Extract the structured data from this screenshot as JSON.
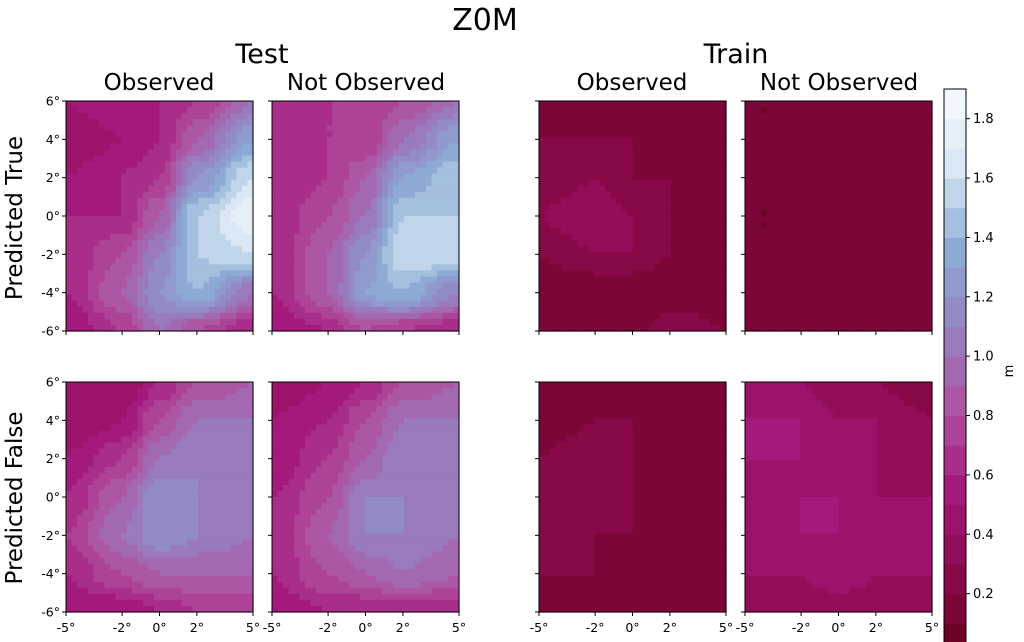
{
  "chart_data": {
    "type": "heatmap",
    "title": "Z0M",
    "group_labels": [
      "Test",
      "Train"
    ],
    "column_labels": [
      "Observed",
      "Not Observed",
      "Observed",
      "Not Observed"
    ],
    "row_labels": [
      "Predicted True",
      "Predicted False"
    ],
    "x_ticks": [
      "-5°",
      "-2°",
      "0°",
      "2°",
      "5°"
    ],
    "x_tick_values": [
      -5,
      -2,
      0,
      2,
      5
    ],
    "xlim": [
      -5,
      5
    ],
    "y_ticks": [
      "6°",
      "4°",
      "2°",
      "0°",
      "-2°",
      "-4°",
      "-6°"
    ],
    "y_tick_values": [
      6,
      4,
      2,
      0,
      -2,
      -4,
      -6
    ],
    "ylim": [
      -6,
      6
    ],
    "colorbar": {
      "label": "m",
      "vmin": 0.0,
      "vmax": 1.9,
      "ticks": [
        "0.0",
        "0.2",
        "0.4",
        "0.6",
        "0.8",
        "1.0",
        "1.2",
        "1.4",
        "1.6",
        "1.8"
      ],
      "tick_values": [
        0,
        0.2,
        0.4,
        0.6,
        0.8,
        1.0,
        1.2,
        1.4,
        1.6,
        1.8
      ],
      "levels": 19,
      "colormap": [
        "#67001f",
        "#8b0a4a",
        "#a3177b",
        "#b0519f",
        "#9581c0",
        "#8cabd5",
        "#d6e6f3",
        "#f7fbff"
      ]
    },
    "panels": [
      {
        "group": "Test",
        "column": "Observed",
        "row": "Predicted True",
        "y": [
          -6,
          -4,
          -2,
          0,
          2,
          4,
          6
        ],
        "x": [
          -5,
          -2,
          0,
          2,
          5
        ],
        "z": [
          [
            0.5,
            0.7,
            1.0,
            0.8,
            0.6
          ],
          [
            0.6,
            0.9,
            1.2,
            1.4,
            1.0
          ],
          [
            0.6,
            0.8,
            1.1,
            1.5,
            1.6
          ],
          [
            0.6,
            0.6,
            0.9,
            1.5,
            1.8
          ],
          [
            0.5,
            0.6,
            0.7,
            1.2,
            1.6
          ],
          [
            0.4,
            0.5,
            0.6,
            0.9,
            1.3
          ],
          [
            0.5,
            0.6,
            0.6,
            0.7,
            1.0
          ]
        ]
      },
      {
        "group": "Test",
        "column": "Not Observed",
        "row": "Predicted True",
        "y": [
          -6,
          -4,
          -2,
          0,
          2,
          4,
          6
        ],
        "x": [
          -5,
          -2,
          0,
          2,
          5
        ],
        "z": [
          [
            0.5,
            0.6,
            0.8,
            0.7,
            0.6
          ],
          [
            0.6,
            0.9,
            1.3,
            1.4,
            1.1
          ],
          [
            0.6,
            0.9,
            1.2,
            1.6,
            1.6
          ],
          [
            0.6,
            0.8,
            1.0,
            1.5,
            1.5
          ],
          [
            0.6,
            0.7,
            0.9,
            1.3,
            1.5
          ],
          [
            0.6,
            0.7,
            0.7,
            1.0,
            1.3
          ],
          [
            0.6,
            0.7,
            0.7,
            0.8,
            1.0
          ]
        ]
      },
      {
        "group": "Train",
        "column": "Observed",
        "row": "Predicted True",
        "y": [
          -6,
          -4,
          -2,
          0,
          2,
          4,
          6
        ],
        "x": [
          -5,
          -2,
          0,
          2,
          5
        ],
        "z": [
          [
            0.1,
            0.1,
            0.1,
            0.3,
            0.2
          ],
          [
            0.1,
            0.1,
            0.1,
            0.1,
            0.1
          ],
          [
            0.2,
            0.3,
            0.3,
            0.2,
            0.1
          ],
          [
            0.3,
            0.4,
            0.3,
            0.2,
            0.1
          ],
          [
            0.2,
            0.3,
            0.2,
            0.2,
            0.1
          ],
          [
            0.2,
            0.2,
            0.2,
            0.1,
            0.2
          ],
          [
            0.1,
            0.2,
            0.1,
            0.1,
            0.1
          ]
        ]
      },
      {
        "group": "Train",
        "column": "Not Observed",
        "row": "Predicted True",
        "y": [
          -6,
          -4,
          -2,
          0,
          2,
          4,
          6
        ],
        "x": [
          -5,
          -2,
          0,
          2,
          5
        ],
        "z": [
          [
            0.1,
            0.1,
            0.1,
            0.1,
            0.1
          ],
          [
            0.1,
            0.1,
            0.1,
            0.1,
            0.1
          ],
          [
            0.1,
            0.1,
            0.1,
            0.1,
            0.1
          ],
          [
            0.1,
            0.1,
            0.1,
            0.1,
            0.1
          ],
          [
            0.1,
            0.1,
            0.1,
            0.1,
            0.1
          ],
          [
            0.1,
            0.1,
            0.1,
            0.1,
            0.1
          ],
          [
            0.1,
            0.1,
            0.1,
            0.1,
            0.1
          ]
        ]
      },
      {
        "group": "Test",
        "column": "Observed",
        "row": "Predicted False",
        "y": [
          -6,
          -4,
          -2,
          0,
          2,
          4,
          6
        ],
        "x": [
          -5,
          -2,
          0,
          2,
          5
        ],
        "z": [
          [
            0.5,
            0.5,
            0.6,
            0.7,
            0.7
          ],
          [
            0.6,
            0.8,
            0.9,
            0.9,
            0.9
          ],
          [
            0.7,
            1.0,
            1.2,
            1.1,
            1.0
          ],
          [
            0.6,
            0.9,
            1.2,
            1.1,
            1.0
          ],
          [
            0.5,
            0.7,
            1.0,
            1.1,
            1.0
          ],
          [
            0.4,
            0.5,
            0.8,
            1.0,
            1.0
          ],
          [
            0.4,
            0.4,
            0.6,
            0.8,
            0.9
          ]
        ]
      },
      {
        "group": "Test",
        "column": "Not Observed",
        "row": "Predicted False",
        "y": [
          -6,
          -4,
          -2,
          0,
          2,
          4,
          6
        ],
        "x": [
          -5,
          -2,
          0,
          2,
          5
        ],
        "z": [
          [
            0.5,
            0.6,
            0.6,
            0.6,
            0.6
          ],
          [
            0.6,
            0.8,
            0.9,
            1.0,
            0.9
          ],
          [
            0.6,
            0.9,
            1.1,
            1.1,
            1.0
          ],
          [
            0.6,
            0.8,
            1.1,
            1.1,
            1.0
          ],
          [
            0.5,
            0.7,
            0.9,
            1.1,
            1.0
          ],
          [
            0.5,
            0.6,
            0.8,
            1.0,
            1.0
          ],
          [
            0.4,
            0.5,
            0.6,
            0.8,
            0.9
          ]
        ]
      },
      {
        "group": "Train",
        "column": "Observed",
        "row": "Predicted False",
        "y": [
          -6,
          -4,
          -2,
          0,
          2,
          4,
          6
        ],
        "x": [
          -5,
          -2,
          0,
          2,
          5
        ],
        "z": [
          [
            0.1,
            0.1,
            0.1,
            0.1,
            0.1
          ],
          [
            0.2,
            0.2,
            0.1,
            0.1,
            0.1
          ],
          [
            0.2,
            0.2,
            0.2,
            0.1,
            0.1
          ],
          [
            0.2,
            0.3,
            0.2,
            0.1,
            0.1
          ],
          [
            0.2,
            0.3,
            0.2,
            0.1,
            0.1
          ],
          [
            0.1,
            0.2,
            0.2,
            0.1,
            0.1
          ],
          [
            0.1,
            0.1,
            0.1,
            0.1,
            0.1
          ]
        ]
      },
      {
        "group": "Train",
        "column": "Not Observed",
        "row": "Predicted False",
        "y": [
          -6,
          -4,
          -2,
          0,
          2,
          4,
          6
        ],
        "x": [
          -5,
          -2,
          0,
          2,
          5
        ],
        "z": [
          [
            0.3,
            0.3,
            0.3,
            0.3,
            0.3
          ],
          [
            0.4,
            0.4,
            0.5,
            0.4,
            0.4
          ],
          [
            0.4,
            0.5,
            0.5,
            0.5,
            0.4
          ],
          [
            0.4,
            0.5,
            0.5,
            0.4,
            0.4
          ],
          [
            0.5,
            0.5,
            0.4,
            0.4,
            0.3
          ],
          [
            0.5,
            0.5,
            0.4,
            0.4,
            0.3
          ],
          [
            0.4,
            0.4,
            0.3,
            0.3,
            0.2
          ]
        ]
      }
    ]
  }
}
